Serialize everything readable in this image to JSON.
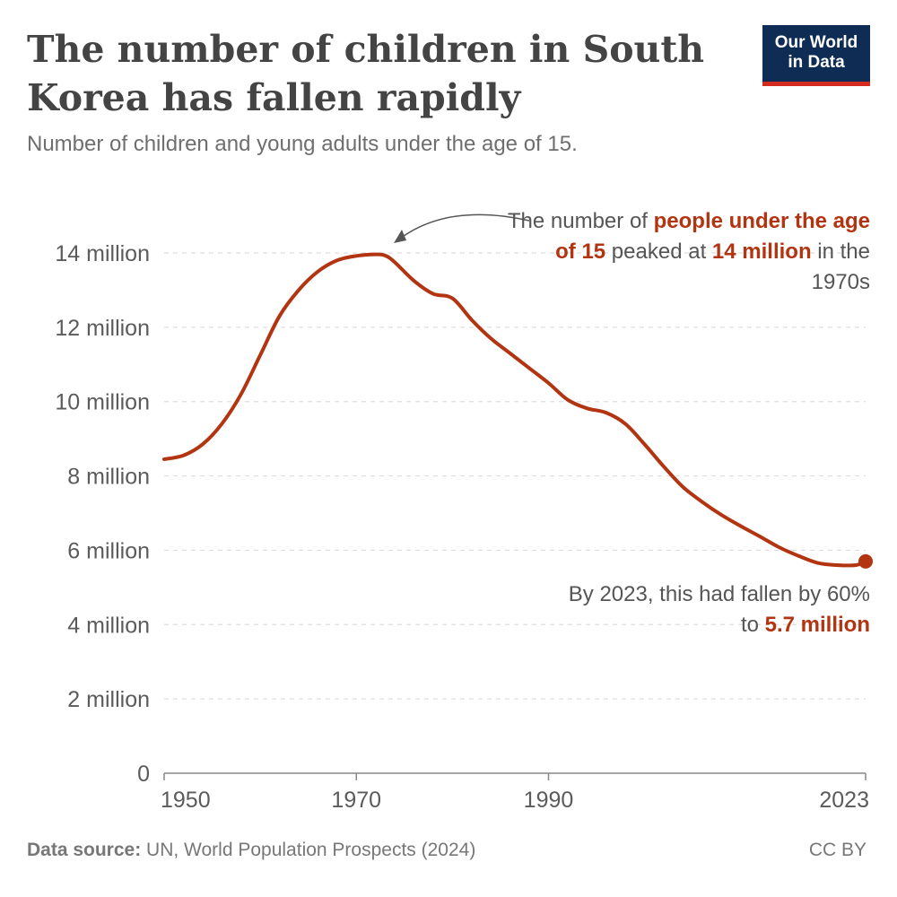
{
  "header": {
    "title": "The number of children in South Korea has fallen rapidly",
    "subtitle": "Number of children and young adults under the age of 15."
  },
  "logo": {
    "line1": "Our World",
    "line2": "in Data"
  },
  "annotations": {
    "peak": {
      "part1": "The number of ",
      "hl1": "people under the age of 15",
      "part2": " peaked at ",
      "hl2": "14 million",
      "part3": " in the 1970s"
    },
    "end": {
      "part1": "By 2023, this had fallen by 60% to ",
      "hl1": "5.7 million"
    }
  },
  "footer": {
    "source_label": "Data source:",
    "source_text": " UN, World Population Prospects (2024)",
    "license": "CC BY"
  },
  "colors": {
    "line": "#b23410",
    "grid": "#dddddd",
    "axis": "#888888"
  },
  "chart_data": {
    "type": "line",
    "title": "The number of children in South Korea has fallen rapidly",
    "subtitle": "Number of children and young adults under the age of 15.",
    "xlabel": "",
    "ylabel": "",
    "xlim": [
      1950,
      2023
    ],
    "ylim": [
      0,
      14
    ],
    "x_ticks": [
      1950,
      1970,
      1990,
      2023
    ],
    "y_ticks": [
      {
        "value": 0,
        "label": "0"
      },
      {
        "value": 2,
        "label": "2 million"
      },
      {
        "value": 4,
        "label": "4 million"
      },
      {
        "value": 6,
        "label": "6 million"
      },
      {
        "value": 8,
        "label": "8 million"
      },
      {
        "value": 10,
        "label": "10 million"
      },
      {
        "value": 12,
        "label": "12 million"
      },
      {
        "value": 14,
        "label": "14 million"
      }
    ],
    "grid": true,
    "series": [
      {
        "unit": "million",
        "x": [
          1950,
          1952,
          1954,
          1956,
          1958,
          1960,
          1962,
          1964,
          1966,
          1968,
          1970,
          1972,
          1973,
          1974,
          1976,
          1978,
          1980,
          1982,
          1984,
          1986,
          1988,
          1990,
          1992,
          1994,
          1996,
          1998,
          2000,
          2002,
          2004,
          2006,
          2008,
          2010,
          2012,
          2014,
          2016,
          2018,
          2020,
          2022,
          2023
        ],
        "values": [
          8.45,
          8.55,
          8.85,
          9.4,
          10.2,
          11.25,
          12.3,
          13.0,
          13.5,
          13.8,
          13.92,
          13.96,
          13.93,
          13.75,
          13.25,
          12.9,
          12.78,
          12.2,
          11.7,
          11.3,
          10.9,
          10.5,
          10.05,
          9.82,
          9.7,
          9.4,
          8.85,
          8.25,
          7.7,
          7.3,
          6.95,
          6.65,
          6.37,
          6.08,
          5.85,
          5.66,
          5.6,
          5.6,
          5.7
        ]
      }
    ],
    "highlight_point": {
      "x": 2023,
      "y": 5.7
    }
  }
}
